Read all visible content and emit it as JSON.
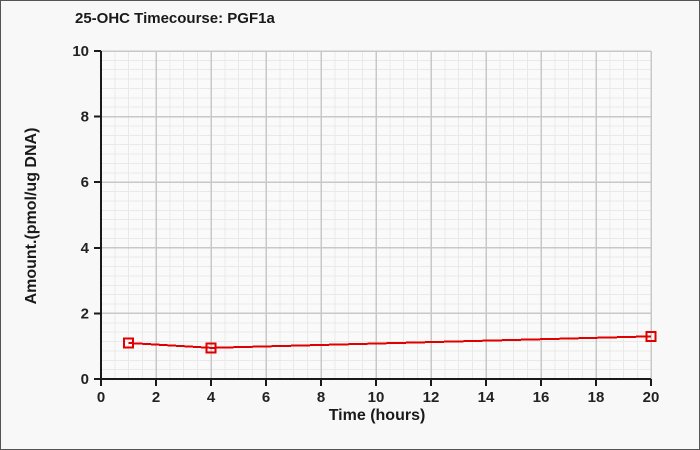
{
  "window": {
    "background": "#f8f8f8",
    "border_color": "#555555"
  },
  "chart_data": {
    "type": "line",
    "title": "25-OHC Timecourse: PGF1a",
    "xlabel": "Time (hours)",
    "ylabel": "Amount.(pmol/ug DNA)",
    "xlim": [
      0,
      20
    ],
    "ylim": [
      0,
      10
    ],
    "x_ticks": [
      0,
      2,
      4,
      6,
      8,
      10,
      12,
      14,
      16,
      18,
      20
    ],
    "y_ticks": [
      0,
      2,
      4,
      6,
      8,
      10
    ],
    "grid": "major+minor",
    "legend": "none",
    "series": [
      {
        "name": "PGF1a",
        "x": [
          1,
          4,
          20
        ],
        "y": [
          1.1,
          0.95,
          1.3
        ],
        "color": "#e00000",
        "marker": "open-square",
        "marker_size": 9
      }
    ],
    "colors": {
      "axis": "#1a1a1a",
      "tick_text": "#222222",
      "major_grid": "#c8c8c8",
      "minor_grid": "#e9e9e9",
      "plot_background": "#fafafa"
    }
  }
}
